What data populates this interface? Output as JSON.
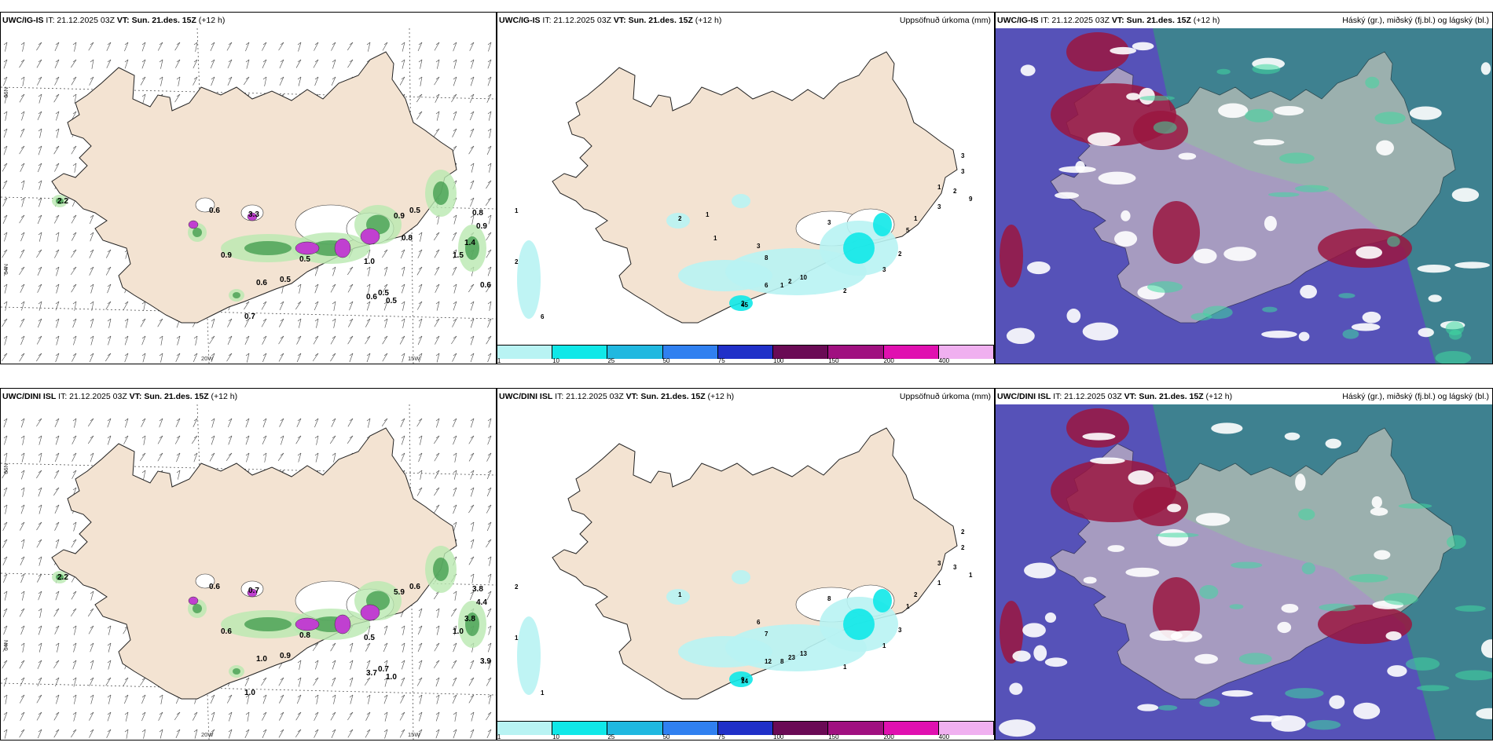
{
  "panels": [
    {
      "id": "r1c1",
      "model": "UWC/IG-IS",
      "it": "IT: 21.12.2025 03Z",
      "vt": "VT: Sun. 21.des. 15Z",
      "lead": "(+12 h)",
      "right": "",
      "kind": "wind",
      "labels": [
        "0.6",
        "3.3",
        "0.9",
        "0.6",
        "0.5",
        "0.7",
        "0.5",
        "0.6",
        "0.5",
        "0.9",
        "0.8",
        "0.9",
        "1.4",
        "1.5",
        "0.6",
        "0.5",
        "0.5",
        "2.2",
        "1.0",
        "0.8"
      ]
    },
    {
      "id": "r1c2",
      "model": "UWC/IG-IS",
      "it": "IT: 21.12.2025 03Z",
      "vt": "VT: Sun. 21.des. 15Z",
      "lead": "(+12 h)",
      "right": "Uppsöfnuð úrkoma (mm)",
      "kind": "precip",
      "labels": [
        "1",
        "2",
        "6",
        "9",
        "3",
        "2",
        "3",
        "8",
        "6",
        "2",
        "10",
        "45",
        "1",
        "2",
        "3",
        "2",
        "5",
        "1",
        "1",
        "2",
        "3",
        "3",
        "3",
        "2",
        "1",
        "1"
      ]
    },
    {
      "id": "r1c3",
      "model": "UWC/IG-IS",
      "it": "IT: 21.12.2025 03Z",
      "vt": "VT: Sun. 21.des. 15Z",
      "lead": "(+12 h)",
      "right": "Háský (gr.), miðský (fj.bl.) og lágský (bl.)",
      "kind": "cloud"
    },
    {
      "id": "r2c1",
      "model": "UWC/DINI ISL",
      "it": "IT: 21.12.2025 03Z",
      "vt": "VT: Sun. 21.des. 15Z",
      "lead": "(+12 h)",
      "right": "",
      "kind": "wind",
      "labels": [
        "0.6",
        "0.7",
        "0.6",
        "1.0",
        "0.9",
        "1.0",
        "0.8",
        "3.7",
        "0.6",
        "5.9",
        "3.8",
        "4.4",
        "3.8",
        "1.0",
        "3.9",
        "0.7",
        "1.0",
        "2.2",
        "0.5"
      ]
    },
    {
      "id": "r2c2",
      "model": "UWC/DINI ISL",
      "it": "IT: 21.12.2025 03Z",
      "vt": "VT: Sun. 21.des. 15Z",
      "lead": "(+12 h)",
      "right": "Uppsöfnuð úrkoma (mm)",
      "kind": "precip",
      "labels": [
        "2",
        "1",
        "1",
        "1",
        "8",
        "9",
        "6",
        "7",
        "12",
        "23",
        "13",
        "14",
        "8",
        "1",
        "1",
        "3",
        "1",
        "2",
        "3",
        "3",
        "2",
        "2",
        "1",
        "1"
      ]
    },
    {
      "id": "r2c3",
      "model": "UWC/DINI ISL",
      "it": "IT: 21.12.2025 03Z",
      "vt": "VT: Sun. 21.des. 15Z",
      "lead": "(+12 h)",
      "right": "Háský (gr.), miðský (fj.bl.) og lágský (bl.)",
      "kind": "cloud"
    }
  ],
  "axis_labels": {
    "lat66": "66N",
    "lat64": "64N",
    "lat63": "63N",
    "lon20": "20W",
    "lon15": "15W"
  },
  "colorbar": {
    "ticks": [
      "1",
      "10",
      "25",
      "50",
      "75",
      "100",
      "150",
      "200",
      "400"
    ],
    "colors": [
      "#b8f3f3",
      "#10e8e8",
      "#20b8e0",
      "#3080f0",
      "#2030c8",
      "#6a0a55",
      "#a01080",
      "#e010b0",
      "#f0b0f0"
    ]
  },
  "colors": {
    "land": "#f3e3d2",
    "wind_green": "#3c9a4a",
    "purple": "#c040d0",
    "cloud_blue": "#5652b8",
    "cloud_red": "#9a1640",
    "cloud_teal": "#3a8a88"
  }
}
